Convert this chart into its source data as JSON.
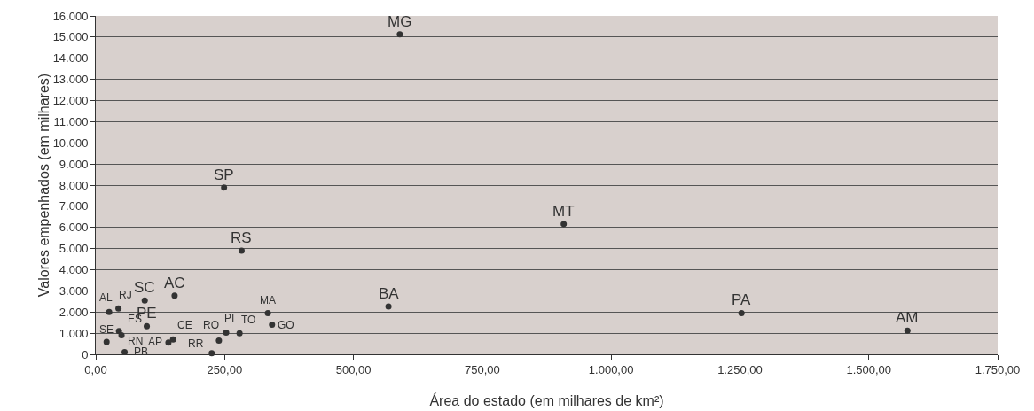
{
  "chart_data": {
    "type": "scatter",
    "xlabel": "Área do estado (em milhares de km²)",
    "ylabel": "Valores empenhados (em milhares)",
    "x": [
      590,
      249,
      283,
      908,
      1253,
      1575,
      568,
      26,
      44,
      95,
      153,
      99,
      21,
      45,
      50,
      56,
      141,
      150,
      225,
      239,
      253,
      279,
      334,
      342
    ],
    "series": [
      {
        "color": "#333333",
        "values": [
          15130,
          7890,
          4900,
          6160,
          1950,
          1120,
          2260,
          2000,
          2170,
          2540,
          2780,
          1330,
          590,
          1100,
          900,
          100,
          560,
          700,
          50,
          650,
          1030,
          1000,
          1950,
          1400
        ]
      }
    ],
    "annotations": [
      {
        "text": "MG",
        "x": 590,
        "y": 15130
      },
      {
        "text": "SP",
        "x": 249,
        "y": 7890
      },
      {
        "text": "RS",
        "x": 283,
        "y": 4900
      },
      {
        "text": "MT",
        "x": 908,
        "y": 6160
      },
      {
        "text": "PA",
        "x": 1253,
        "y": 1950
      },
      {
        "text": "AM",
        "x": 1575,
        "y": 1120
      },
      {
        "text": "BA",
        "x": 568,
        "y": 2260
      },
      {
        "text": "AL",
        "x": 26,
        "y": 2000
      },
      {
        "text": "RJ",
        "x": 44,
        "y": 2170
      },
      {
        "text": "SC",
        "x": 95,
        "y": 2540
      },
      {
        "text": "AC",
        "x": 153,
        "y": 2780
      },
      {
        "text": "PE",
        "x": 99,
        "y": 1330
      },
      {
        "text": "SE",
        "x": 21,
        "y": 590
      },
      {
        "text": "ES",
        "x": 45,
        "y": 1100
      },
      {
        "text": "RN",
        "x": 50,
        "y": 900
      },
      {
        "text": "PB",
        "x": 56,
        "y": 100
      },
      {
        "text": "AP",
        "x": 141,
        "y": 560
      },
      {
        "text": "CE",
        "x": 150,
        "y": 700
      },
      {
        "text": "RR",
        "x": 225,
        "y": 50
      },
      {
        "text": "RO",
        "x": 239,
        "y": 650
      },
      {
        "text": "PI",
        "x": 253,
        "y": 1030
      },
      {
        "text": "TO",
        "x": 279,
        "y": 1000
      },
      {
        "text": "MA",
        "x": 334,
        "y": 1950
      },
      {
        "text": "GO",
        "x": 342,
        "y": 1400
      }
    ],
    "xlim": [
      0,
      1750
    ],
    "xticks": [
      {
        "value": 0,
        "label": "0,00"
      },
      {
        "value": 250,
        "label": "250,00"
      },
      {
        "value": 500,
        "label": "500,00"
      },
      {
        "value": 750,
        "label": "750,00"
      },
      {
        "value": 1000,
        "label": "1.000,00"
      },
      {
        "value": 1250,
        "label": "1.250,00"
      },
      {
        "value": 1500,
        "label": "1.500,00"
      },
      {
        "value": 1750,
        "label": "1.750,00"
      }
    ],
    "ylim": [
      0,
      16000
    ],
    "yticks": [
      0,
      {
        "value": 1000,
        "label": "1.000"
      },
      {
        "value": 2000,
        "label": "2.000"
      },
      {
        "value": 3000,
        "label": "3.000"
      },
      {
        "value": 4000,
        "label": "4.000"
      },
      {
        "value": 5000,
        "label": "5.000"
      },
      {
        "value": 6000,
        "label": "6.000"
      },
      {
        "value": 7000,
        "label": "7.000"
      },
      {
        "value": 8000,
        "label": "8.000"
      },
      {
        "value": 9000,
        "label": "9.000"
      },
      {
        "value": 10000,
        "label": "10.000"
      },
      {
        "value": 11000,
        "label": "11.000"
      },
      {
        "value": 12000,
        "label": "12.000"
      },
      {
        "value": 13000,
        "label": "13.000"
      },
      {
        "value": 14000,
        "label": "14.000"
      },
      {
        "value": 15000,
        "label": "15.000"
      },
      {
        "value": 16000,
        "label": "16.000"
      }
    ],
    "grid": "y",
    "marker": "circle"
  }
}
